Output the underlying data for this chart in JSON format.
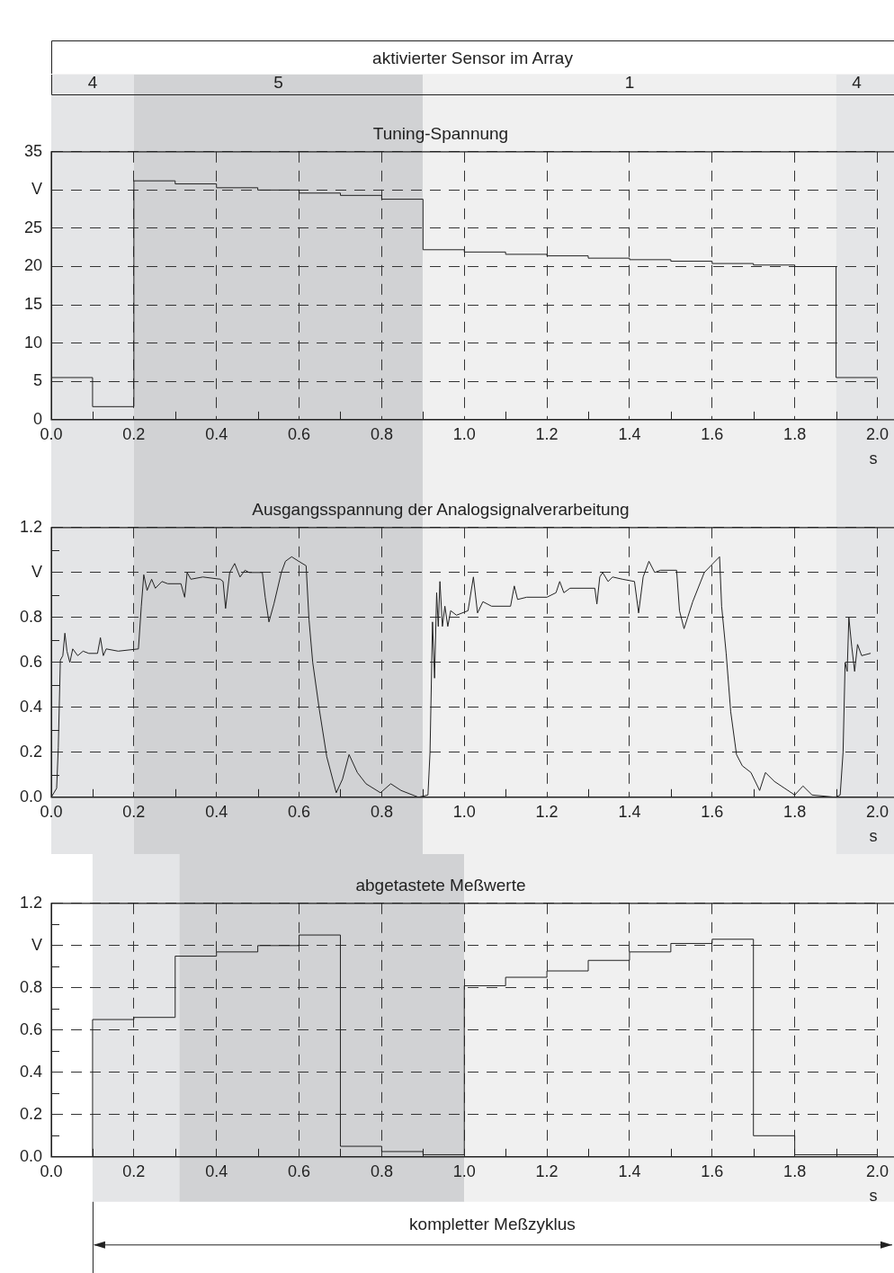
{
  "chart_data": [
    {
      "type": "step",
      "title": "Tuning-Spannung",
      "annotations": [
        "aktivierter Sensor im Array"
      ],
      "x": [
        0,
        0.1,
        0.2,
        0.3,
        0.4,
        0.5,
        0.6,
        0.7,
        0.8,
        0.9,
        1.0,
        1.1,
        1.2,
        1.3,
        1.4,
        1.5,
        1.6,
        1.7,
        1.8,
        1.9,
        2.0
      ],
      "values": [
        5.5,
        1.7,
        31.2,
        30.8,
        30.3,
        30.0,
        29.6,
        29.3,
        28.8,
        22.2,
        21.9,
        21.6,
        21.4,
        21.1,
        20.9,
        20.7,
        20.4,
        20.2,
        20.0,
        5.5,
        5.5
      ],
      "color": "#222222",
      "xlim": [
        0,
        2.0
      ],
      "xticks": [
        {
          "value": 0,
          "label": "0.0"
        },
        {
          "value": 0.1,
          "label": null
        },
        {
          "value": 0.2,
          "label": "0.2"
        },
        {
          "value": 0.3,
          "label": null
        },
        {
          "value": 0.4,
          "label": "0.4"
        },
        {
          "value": 0.5,
          "label": null
        },
        {
          "value": 0.6,
          "label": "0.6"
        },
        {
          "value": 0.7,
          "label": null
        },
        {
          "value": 0.8,
          "label": "0.8"
        },
        {
          "value": 0.9,
          "label": null
        },
        {
          "value": 1.0,
          "label": "1.0"
        },
        {
          "value": 1.1,
          "label": null
        },
        {
          "value": 1.2,
          "label": "1.2"
        },
        {
          "value": 1.3,
          "label": null
        },
        {
          "value": 1.4,
          "label": "1.4"
        },
        {
          "value": 1.5,
          "label": null
        },
        {
          "value": 1.6,
          "label": "1.6"
        },
        {
          "value": 1.7,
          "label": null
        },
        {
          "value": 1.8,
          "label": "1.8"
        },
        {
          "value": 1.9,
          "label": null
        },
        {
          "value": 2.0,
          "label": "2.0"
        }
      ],
      "ylim": [
        0,
        35
      ],
      "yticks": [
        0,
        5,
        10,
        15,
        20,
        25,
        {
          "value": 30,
          "label": "V"
        },
        35
      ],
      "xlabel": "s",
      "grid": true,
      "bands": [
        {
          "axis": "x",
          "from": 0,
          "to": 0.2,
          "label": "4",
          "color": "#e4e5e7"
        },
        {
          "axis": "x",
          "from": 0.2,
          "to": 0.9,
          "label": "5",
          "color": "#d1d2d4"
        },
        {
          "axis": "x",
          "from": 0.9,
          "to": 1.9,
          "label": "1",
          "color": "#f0f0f0"
        },
        {
          "axis": "x",
          "from": 1.9,
          "to": 2.0,
          "label": "4",
          "color": "#e4e5e7"
        }
      ]
    },
    {
      "type": "line",
      "title": "Ausgangsspannung der Analogsignalverarbeitung",
      "x": [
        0,
        0.013,
        0.017,
        0.022,
        0.028,
        0.033,
        0.038,
        0.045,
        0.052,
        0.064,
        0.077,
        0.091,
        0.112,
        0.119,
        0.126,
        0.133,
        0.162,
        0.211,
        0.218,
        0.224,
        0.232,
        0.243,
        0.252,
        0.268,
        0.282,
        0.314,
        0.323,
        0.329,
        0.338,
        0.367,
        0.409,
        0.416,
        0.422,
        0.432,
        0.444,
        0.457,
        0.469,
        0.479,
        0.511,
        0.518,
        0.527,
        0.539,
        0.557,
        0.567,
        0.582,
        0.599,
        0.617,
        0.624,
        0.633,
        0.649,
        0.667,
        0.69,
        0.705,
        0.721,
        0.741,
        0.762,
        0.797,
        0.822,
        0.847,
        0.889,
        0.912,
        0.917,
        0.923,
        0.928,
        0.933,
        0.937,
        0.941,
        0.947,
        0.953,
        0.96,
        0.967,
        0.981,
        1.009,
        1.022,
        1.032,
        1.045,
        1.066,
        1.112,
        1.121,
        1.129,
        1.151,
        1.2,
        1.222,
        1.231,
        1.241,
        1.256,
        1.316,
        1.321,
        1.328,
        1.335,
        1.348,
        1.359,
        1.383,
        1.412,
        1.422,
        1.433,
        1.447,
        1.461,
        1.475,
        1.514,
        1.521,
        1.532,
        1.553,
        1.581,
        1.602,
        1.618,
        1.623,
        1.634,
        1.645,
        1.659,
        1.673,
        1.694,
        1.715,
        1.729,
        1.751,
        1.8,
        1.82,
        1.842,
        1.899,
        1.91,
        1.917,
        1.922,
        1.927,
        1.931,
        1.938,
        1.945,
        1.952,
        1.962,
        1.983
      ],
      "values": [
        0,
        0.04,
        0.22,
        0.61,
        0.63,
        0.73,
        0.65,
        0.6,
        0.66,
        0.63,
        0.65,
        0.64,
        0.64,
        0.71,
        0.63,
        0.66,
        0.65,
        0.66,
        0.85,
        0.99,
        0.92,
        0.97,
        0.93,
        0.96,
        0.95,
        0.95,
        0.89,
        1.0,
        0.97,
        0.98,
        0.97,
        0.96,
        0.84,
        1.0,
        1.04,
        0.98,
        1.01,
        1.0,
        1.0,
        0.89,
        0.78,
        0.86,
        1.0,
        1.05,
        1.07,
        1.05,
        1.03,
        0.79,
        0.6,
        0.39,
        0.18,
        0.02,
        0.08,
        0.19,
        0.11,
        0.06,
        0.02,
        0.06,
        0.03,
        0.0,
        0.01,
        0.2,
        0.78,
        0.53,
        0.91,
        0.76,
        0.96,
        0.76,
        0.85,
        0.76,
        0.83,
        0.81,
        0.83,
        0.98,
        0.82,
        0.87,
        0.85,
        0.85,
        0.94,
        0.88,
        0.89,
        0.89,
        0.91,
        0.96,
        0.91,
        0.93,
        0.93,
        0.86,
        0.98,
        1.0,
        0.96,
        0.98,
        0.97,
        0.96,
        0.82,
        0.98,
        1.05,
        1.0,
        1.01,
        1.01,
        0.83,
        0.75,
        0.87,
        1.0,
        1.04,
        1.07,
        0.85,
        0.64,
        0.38,
        0.19,
        0.14,
        0.11,
        0.03,
        0.11,
        0.07,
        0.01,
        0.05,
        0.01,
        0.0,
        0.01,
        0.2,
        0.6,
        0.56,
        0.8,
        0.67,
        0.56,
        0.68,
        0.63,
        0.64
      ],
      "color": "#222222",
      "xlim": [
        0,
        2.0
      ],
      "xticks": [
        {
          "value": 0,
          "label": "0.0"
        },
        {
          "value": 0.1,
          "label": null
        },
        {
          "value": 0.2,
          "label": "0.2"
        },
        {
          "value": 0.3,
          "label": null
        },
        {
          "value": 0.4,
          "label": "0.4"
        },
        {
          "value": 0.5,
          "label": null
        },
        {
          "value": 0.6,
          "label": "0.6"
        },
        {
          "value": 0.7,
          "label": null
        },
        {
          "value": 0.8,
          "label": "0.8"
        },
        {
          "value": 0.9,
          "label": null
        },
        {
          "value": 1.0,
          "label": "1.0"
        },
        {
          "value": 1.1,
          "label": null
        },
        {
          "value": 1.2,
          "label": "1.2"
        },
        {
          "value": 1.3,
          "label": null
        },
        {
          "value": 1.4,
          "label": "1.4"
        },
        {
          "value": 1.5,
          "label": null
        },
        {
          "value": 1.6,
          "label": "1.6"
        },
        {
          "value": 1.7,
          "label": null
        },
        {
          "value": 1.8,
          "label": "1.8"
        },
        {
          "value": 1.9,
          "label": null
        },
        {
          "value": 2.0,
          "label": "2.0"
        }
      ],
      "ylim": [
        0,
        1.2
      ],
      "yticks": [
        {
          "value": 0,
          "label": "0.0"
        },
        {
          "value": 0.1,
          "label": null
        },
        {
          "value": 0.2,
          "label": "0.2"
        },
        {
          "value": 0.3,
          "label": null
        },
        {
          "value": 0.4,
          "label": "0.4"
        },
        {
          "value": 0.5,
          "label": null
        },
        {
          "value": 0.6,
          "label": "0.6"
        },
        {
          "value": 0.7,
          "label": null
        },
        {
          "value": 0.8,
          "label": "0.8"
        },
        {
          "value": 0.9,
          "label": null
        },
        {
          "value": 1.0,
          "label": "V"
        },
        {
          "value": 1.1,
          "label": null
        },
        {
          "value": 1.2,
          "label": "1.2"
        }
      ],
      "xlabel": "s",
      "grid": true,
      "bands": [
        {
          "axis": "x",
          "from": 0,
          "to": 0.2,
          "color": "#e4e5e7"
        },
        {
          "axis": "x",
          "from": 0.2,
          "to": 0.9,
          "color": "#d1d2d4"
        },
        {
          "axis": "x",
          "from": 0.9,
          "to": 1.9,
          "color": "#f0f0f0"
        },
        {
          "axis": "x",
          "from": 1.9,
          "to": 2.0,
          "color": "#e4e5e7"
        }
      ]
    },
    {
      "type": "step",
      "title": "abgetastete Meßwerte",
      "annotations": [
        "kompletter Meßzyklus"
      ],
      "x": [
        0,
        0.1,
        0.2,
        0.3,
        0.4,
        0.5,
        0.6,
        0.7,
        0.8,
        0.9,
        1.0,
        1.1,
        1.2,
        1.3,
        1.4,
        1.5,
        1.6,
        1.7,
        1.8,
        2.0
      ],
      "values": [
        0.0,
        0.65,
        0.66,
        0.95,
        0.97,
        1.0,
        1.05,
        0.05,
        0.025,
        0.01,
        0.81,
        0.85,
        0.88,
        0.93,
        0.97,
        1.01,
        1.03,
        0.1,
        0.01,
        0.01
      ],
      "color": "#222222",
      "xlim": [
        0,
        2.0
      ],
      "xticks": [
        {
          "value": 0,
          "label": "0.0"
        },
        {
          "value": 0.1,
          "label": null
        },
        {
          "value": 0.2,
          "label": "0.2"
        },
        {
          "value": 0.3,
          "label": null
        },
        {
          "value": 0.4,
          "label": "0.4"
        },
        {
          "value": 0.5,
          "label": null
        },
        {
          "value": 0.6,
          "label": "0.6"
        },
        {
          "value": 0.7,
          "label": null
        },
        {
          "value": 0.8,
          "label": "0.8"
        },
        {
          "value": 0.9,
          "label": null
        },
        {
          "value": 1.0,
          "label": "1.0"
        },
        {
          "value": 1.1,
          "label": null
        },
        {
          "value": 1.2,
          "label": "1.2"
        },
        {
          "value": 1.3,
          "label": null
        },
        {
          "value": 1.4,
          "label": "1.4"
        },
        {
          "value": 1.5,
          "label": null
        },
        {
          "value": 1.6,
          "label": "1.6"
        },
        {
          "value": 1.7,
          "label": null
        },
        {
          "value": 1.8,
          "label": "1.8"
        },
        {
          "value": 1.9,
          "label": null
        },
        {
          "value": 2.0,
          "label": "2.0"
        }
      ],
      "ylim": [
        0,
        1.2
      ],
      "yticks": [
        {
          "value": 0,
          "label": "0.0"
        },
        {
          "value": 0.1,
          "label": null
        },
        {
          "value": 0.2,
          "label": "0.2"
        },
        {
          "value": 0.3,
          "label": null
        },
        {
          "value": 0.4,
          "label": "0.4"
        },
        {
          "value": 0.5,
          "label": null
        },
        {
          "value": 0.6,
          "label": "0.6"
        },
        {
          "value": 0.7,
          "label": null
        },
        {
          "value": 0.8,
          "label": "0.8"
        },
        {
          "value": 0.9,
          "label": null
        },
        {
          "value": 1.0,
          "label": "V"
        },
        {
          "value": 1.1,
          "label": null
        },
        {
          "value": 1.2,
          "label": "1.2"
        }
      ],
      "xlabel": "s",
      "grid": true,
      "bands": [
        {
          "axis": "x",
          "from": 0.1,
          "to": 0.31,
          "color": "#e4e5e7"
        },
        {
          "axis": "x",
          "from": 0.31,
          "to": 1.0,
          "color": "#d1d2d4"
        },
        {
          "axis": "x",
          "from": 1.0,
          "to": 2.0,
          "color": "#f0f0f0"
        }
      ]
    }
  ]
}
